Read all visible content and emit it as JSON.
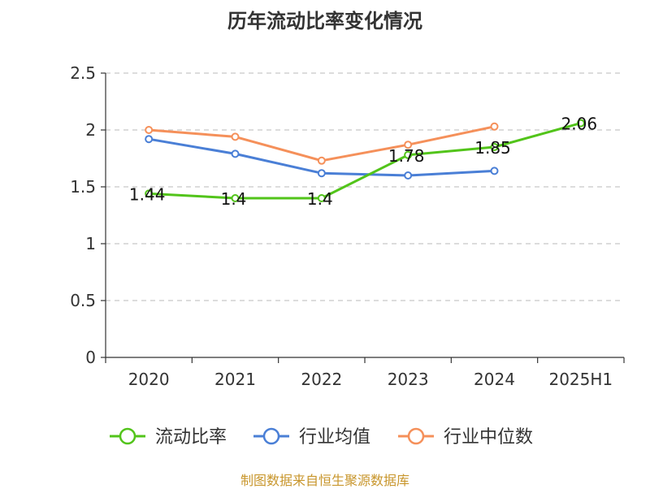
{
  "chart_data": {
    "type": "line",
    "title": "历年流动比率变化情况",
    "categories": [
      "2020",
      "2021",
      "2022",
      "2023",
      "2024",
      "2025H1"
    ],
    "ylim": [
      0,
      2.5
    ],
    "yticks": [
      "0",
      "0.5",
      "1",
      "1.5",
      "2",
      "2.5"
    ],
    "ytick_values": [
      0,
      0.5,
      1,
      1.5,
      2,
      2.5
    ],
    "grid": true,
    "legend_position": "bottom",
    "series": [
      {
        "name": "流动比率",
        "color": "#52c41a",
        "values": [
          1.44,
          1.4,
          1.4,
          1.78,
          1.85,
          2.06
        ],
        "labels": [
          "1.44",
          "1.4",
          "1.4",
          "1.78",
          "1.85",
          "2.06"
        ]
      },
      {
        "name": "行业均值",
        "color": "#4a7fd6",
        "values": [
          1.92,
          1.79,
          1.62,
          1.6,
          1.64,
          null
        ]
      },
      {
        "name": "行业中位数",
        "color": "#f5905a",
        "values": [
          2.0,
          1.94,
          1.73,
          1.87,
          2.03,
          null
        ]
      }
    ]
  },
  "source_note": "制图数据来自恒生聚源数据库"
}
